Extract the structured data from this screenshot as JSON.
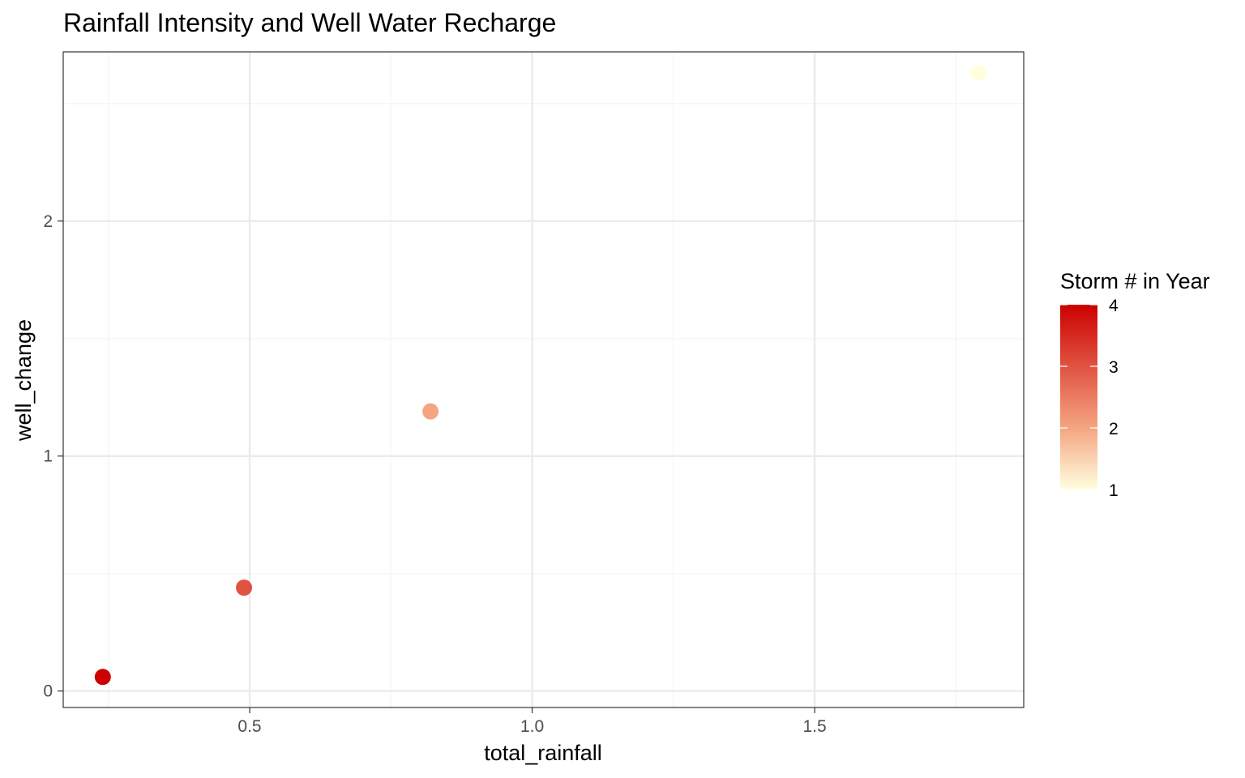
{
  "chart_data": {
    "type": "scatter",
    "title": "Rainfall Intensity and Well Water Recharge",
    "xlabel": "total_rainfall",
    "ylabel": "well_change",
    "xlim": [
      0.17,
      1.87
    ],
    "ylim": [
      -0.07,
      2.72
    ],
    "x_ticks": [
      {
        "value": 0.5,
        "label": "0.5"
      },
      {
        "value": 1.0,
        "label": "1.0"
      },
      {
        "value": 1.5,
        "label": "1.5"
      }
    ],
    "x_minor_ticks": [
      0.25,
      0.75,
      1.25,
      1.75
    ],
    "y_ticks": [
      {
        "value": 0,
        "label": "0"
      },
      {
        "value": 1,
        "label": "1"
      },
      {
        "value": 2,
        "label": "2"
      }
    ],
    "y_minor_ticks": [
      0.5,
      1.5,
      2.5
    ],
    "grid": true,
    "points": [
      {
        "x": 0.24,
        "y": 0.06,
        "storm": 4
      },
      {
        "x": 0.49,
        "y": 0.44,
        "storm": 3
      },
      {
        "x": 0.82,
        "y": 1.19,
        "storm": 2
      },
      {
        "x": 1.79,
        "y": 2.63,
        "storm": 1
      }
    ],
    "legend": {
      "title": "Storm # in Year",
      "placement": "right",
      "range": [
        1,
        4
      ],
      "labels": [
        {
          "value": 4,
          "label": "4"
        },
        {
          "value": 3,
          "label": "3"
        },
        {
          "value": 2,
          "label": "2"
        },
        {
          "value": 1,
          "label": "1"
        }
      ],
      "color_low": "#FFFFE0",
      "color_mid": "#F4A582",
      "color_high": "#CC0000"
    }
  },
  "colors": {
    "panel_border": "#333333",
    "grid_major": "#EBEBEB",
    "grid_minor": "#F5F5F5",
    "tick_mark": "#333333"
  }
}
